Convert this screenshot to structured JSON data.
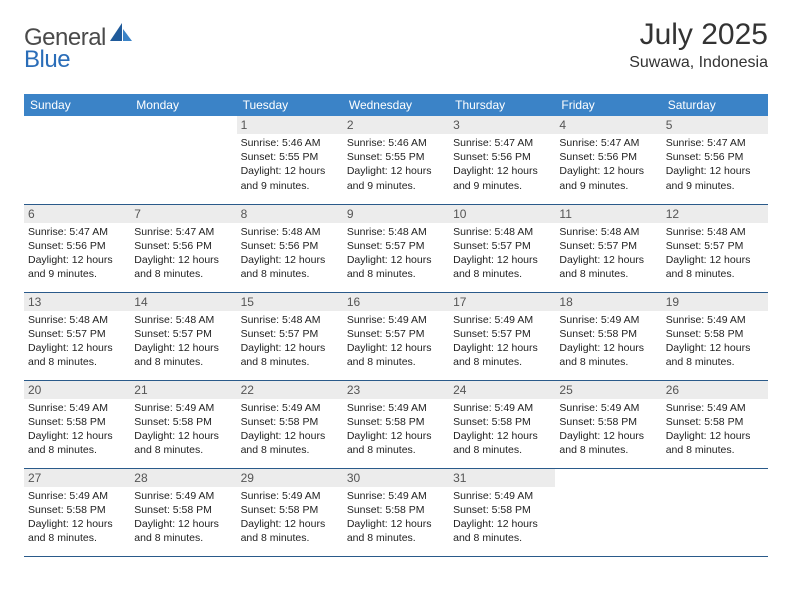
{
  "logo": {
    "part1": "General",
    "part2": "Blue"
  },
  "title": "July 2025",
  "location": "Suwawa, Indonesia",
  "colors": {
    "header_bg": "#3b83c7",
    "header_text": "#ffffff",
    "daynum_bg": "#ececec",
    "daynum_text": "#555555",
    "week_border": "#2a5a8a",
    "logo_gray": "#4a4a4a",
    "logo_blue": "#2a6db8"
  },
  "day_headers": [
    "Sunday",
    "Monday",
    "Tuesday",
    "Wednesday",
    "Thursday",
    "Friday",
    "Saturday"
  ],
  "weeks": [
    [
      null,
      null,
      {
        "n": "1",
        "sr": "Sunrise: 5:46 AM",
        "ss": "Sunset: 5:55 PM",
        "d1": "Daylight: 12 hours",
        "d2": "and 9 minutes."
      },
      {
        "n": "2",
        "sr": "Sunrise: 5:46 AM",
        "ss": "Sunset: 5:55 PM",
        "d1": "Daylight: 12 hours",
        "d2": "and 9 minutes."
      },
      {
        "n": "3",
        "sr": "Sunrise: 5:47 AM",
        "ss": "Sunset: 5:56 PM",
        "d1": "Daylight: 12 hours",
        "d2": "and 9 minutes."
      },
      {
        "n": "4",
        "sr": "Sunrise: 5:47 AM",
        "ss": "Sunset: 5:56 PM",
        "d1": "Daylight: 12 hours",
        "d2": "and 9 minutes."
      },
      {
        "n": "5",
        "sr": "Sunrise: 5:47 AM",
        "ss": "Sunset: 5:56 PM",
        "d1": "Daylight: 12 hours",
        "d2": "and 9 minutes."
      }
    ],
    [
      {
        "n": "6",
        "sr": "Sunrise: 5:47 AM",
        "ss": "Sunset: 5:56 PM",
        "d1": "Daylight: 12 hours",
        "d2": "and 9 minutes."
      },
      {
        "n": "7",
        "sr": "Sunrise: 5:47 AM",
        "ss": "Sunset: 5:56 PM",
        "d1": "Daylight: 12 hours",
        "d2": "and 8 minutes."
      },
      {
        "n": "8",
        "sr": "Sunrise: 5:48 AM",
        "ss": "Sunset: 5:56 PM",
        "d1": "Daylight: 12 hours",
        "d2": "and 8 minutes."
      },
      {
        "n": "9",
        "sr": "Sunrise: 5:48 AM",
        "ss": "Sunset: 5:57 PM",
        "d1": "Daylight: 12 hours",
        "d2": "and 8 minutes."
      },
      {
        "n": "10",
        "sr": "Sunrise: 5:48 AM",
        "ss": "Sunset: 5:57 PM",
        "d1": "Daylight: 12 hours",
        "d2": "and 8 minutes."
      },
      {
        "n": "11",
        "sr": "Sunrise: 5:48 AM",
        "ss": "Sunset: 5:57 PM",
        "d1": "Daylight: 12 hours",
        "d2": "and 8 minutes."
      },
      {
        "n": "12",
        "sr": "Sunrise: 5:48 AM",
        "ss": "Sunset: 5:57 PM",
        "d1": "Daylight: 12 hours",
        "d2": "and 8 minutes."
      }
    ],
    [
      {
        "n": "13",
        "sr": "Sunrise: 5:48 AM",
        "ss": "Sunset: 5:57 PM",
        "d1": "Daylight: 12 hours",
        "d2": "and 8 minutes."
      },
      {
        "n": "14",
        "sr": "Sunrise: 5:48 AM",
        "ss": "Sunset: 5:57 PM",
        "d1": "Daylight: 12 hours",
        "d2": "and 8 minutes."
      },
      {
        "n": "15",
        "sr": "Sunrise: 5:48 AM",
        "ss": "Sunset: 5:57 PM",
        "d1": "Daylight: 12 hours",
        "d2": "and 8 minutes."
      },
      {
        "n": "16",
        "sr": "Sunrise: 5:49 AM",
        "ss": "Sunset: 5:57 PM",
        "d1": "Daylight: 12 hours",
        "d2": "and 8 minutes."
      },
      {
        "n": "17",
        "sr": "Sunrise: 5:49 AM",
        "ss": "Sunset: 5:57 PM",
        "d1": "Daylight: 12 hours",
        "d2": "and 8 minutes."
      },
      {
        "n": "18",
        "sr": "Sunrise: 5:49 AM",
        "ss": "Sunset: 5:58 PM",
        "d1": "Daylight: 12 hours",
        "d2": "and 8 minutes."
      },
      {
        "n": "19",
        "sr": "Sunrise: 5:49 AM",
        "ss": "Sunset: 5:58 PM",
        "d1": "Daylight: 12 hours",
        "d2": "and 8 minutes."
      }
    ],
    [
      {
        "n": "20",
        "sr": "Sunrise: 5:49 AM",
        "ss": "Sunset: 5:58 PM",
        "d1": "Daylight: 12 hours",
        "d2": "and 8 minutes."
      },
      {
        "n": "21",
        "sr": "Sunrise: 5:49 AM",
        "ss": "Sunset: 5:58 PM",
        "d1": "Daylight: 12 hours",
        "d2": "and 8 minutes."
      },
      {
        "n": "22",
        "sr": "Sunrise: 5:49 AM",
        "ss": "Sunset: 5:58 PM",
        "d1": "Daylight: 12 hours",
        "d2": "and 8 minutes."
      },
      {
        "n": "23",
        "sr": "Sunrise: 5:49 AM",
        "ss": "Sunset: 5:58 PM",
        "d1": "Daylight: 12 hours",
        "d2": "and 8 minutes."
      },
      {
        "n": "24",
        "sr": "Sunrise: 5:49 AM",
        "ss": "Sunset: 5:58 PM",
        "d1": "Daylight: 12 hours",
        "d2": "and 8 minutes."
      },
      {
        "n": "25",
        "sr": "Sunrise: 5:49 AM",
        "ss": "Sunset: 5:58 PM",
        "d1": "Daylight: 12 hours",
        "d2": "and 8 minutes."
      },
      {
        "n": "26",
        "sr": "Sunrise: 5:49 AM",
        "ss": "Sunset: 5:58 PM",
        "d1": "Daylight: 12 hours",
        "d2": "and 8 minutes."
      }
    ],
    [
      {
        "n": "27",
        "sr": "Sunrise: 5:49 AM",
        "ss": "Sunset: 5:58 PM",
        "d1": "Daylight: 12 hours",
        "d2": "and 8 minutes."
      },
      {
        "n": "28",
        "sr": "Sunrise: 5:49 AM",
        "ss": "Sunset: 5:58 PM",
        "d1": "Daylight: 12 hours",
        "d2": "and 8 minutes."
      },
      {
        "n": "29",
        "sr": "Sunrise: 5:49 AM",
        "ss": "Sunset: 5:58 PM",
        "d1": "Daylight: 12 hours",
        "d2": "and 8 minutes."
      },
      {
        "n": "30",
        "sr": "Sunrise: 5:49 AM",
        "ss": "Sunset: 5:58 PM",
        "d1": "Daylight: 12 hours",
        "d2": "and 8 minutes."
      },
      {
        "n": "31",
        "sr": "Sunrise: 5:49 AM",
        "ss": "Sunset: 5:58 PM",
        "d1": "Daylight: 12 hours",
        "d2": "and 8 minutes."
      },
      null,
      null
    ]
  ]
}
